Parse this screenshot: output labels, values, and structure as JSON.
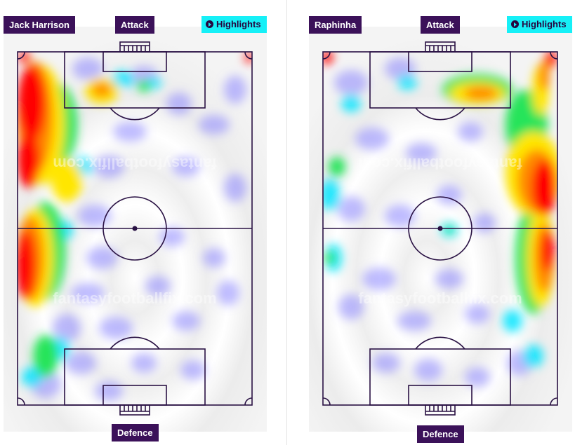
{
  "players": [
    {
      "name": "Jack Harrison",
      "top_label": "Attack",
      "bottom_label": "Defence",
      "highlights_label": "Highlights",
      "watermark": "fantasyfootballfix.com",
      "heat_side": "left"
    },
    {
      "name": "Raphinha",
      "top_label": "Attack",
      "bottom_label": "Defence",
      "highlights_label": "Highlights",
      "watermark": "fantasyfootballfix.com",
      "heat_side": "right"
    }
  ],
  "icons": {
    "play": "play-circle-icon"
  },
  "colors": {
    "label_bg": "#3b1159",
    "highlights_bg": "#16f0f7",
    "pitch_line": "#2a1244",
    "heat_low": "#8a86ff",
    "heat_mid": "#00e6ff",
    "heat_high": "#ff0000"
  }
}
